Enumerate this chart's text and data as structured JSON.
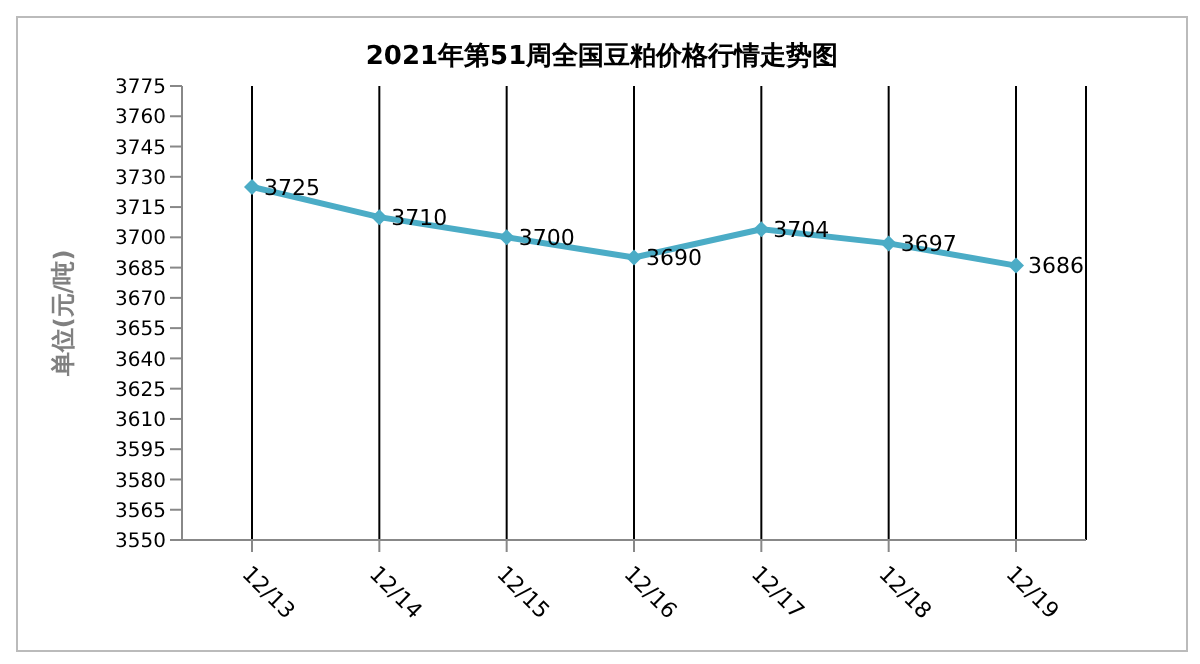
{
  "chart_data": {
    "type": "line",
    "title": "2021年第51周全国豆粕价格行情走势图",
    "ylabel": "单位(元/吨)",
    "categories": [
      "12/13",
      "12/14",
      "12/15",
      "12/16",
      "12/17",
      "12/18",
      "12/19"
    ],
    "series": [
      {
        "color": "#4bacc6",
        "values": [
          3725,
          3710,
          3700,
          3690,
          3704,
          3697,
          3686
        ]
      }
    ],
    "ylim": [
      3550,
      3775
    ],
    "yticks": [
      3550,
      3565,
      3580,
      3595,
      3610,
      3625,
      3640,
      3655,
      3670,
      3685,
      3700,
      3715,
      3730,
      3745,
      3760,
      3775
    ],
    "grid": "x",
    "marker": "diamond",
    "line_style": "solid",
    "data_labels": true,
    "legend": false
  }
}
